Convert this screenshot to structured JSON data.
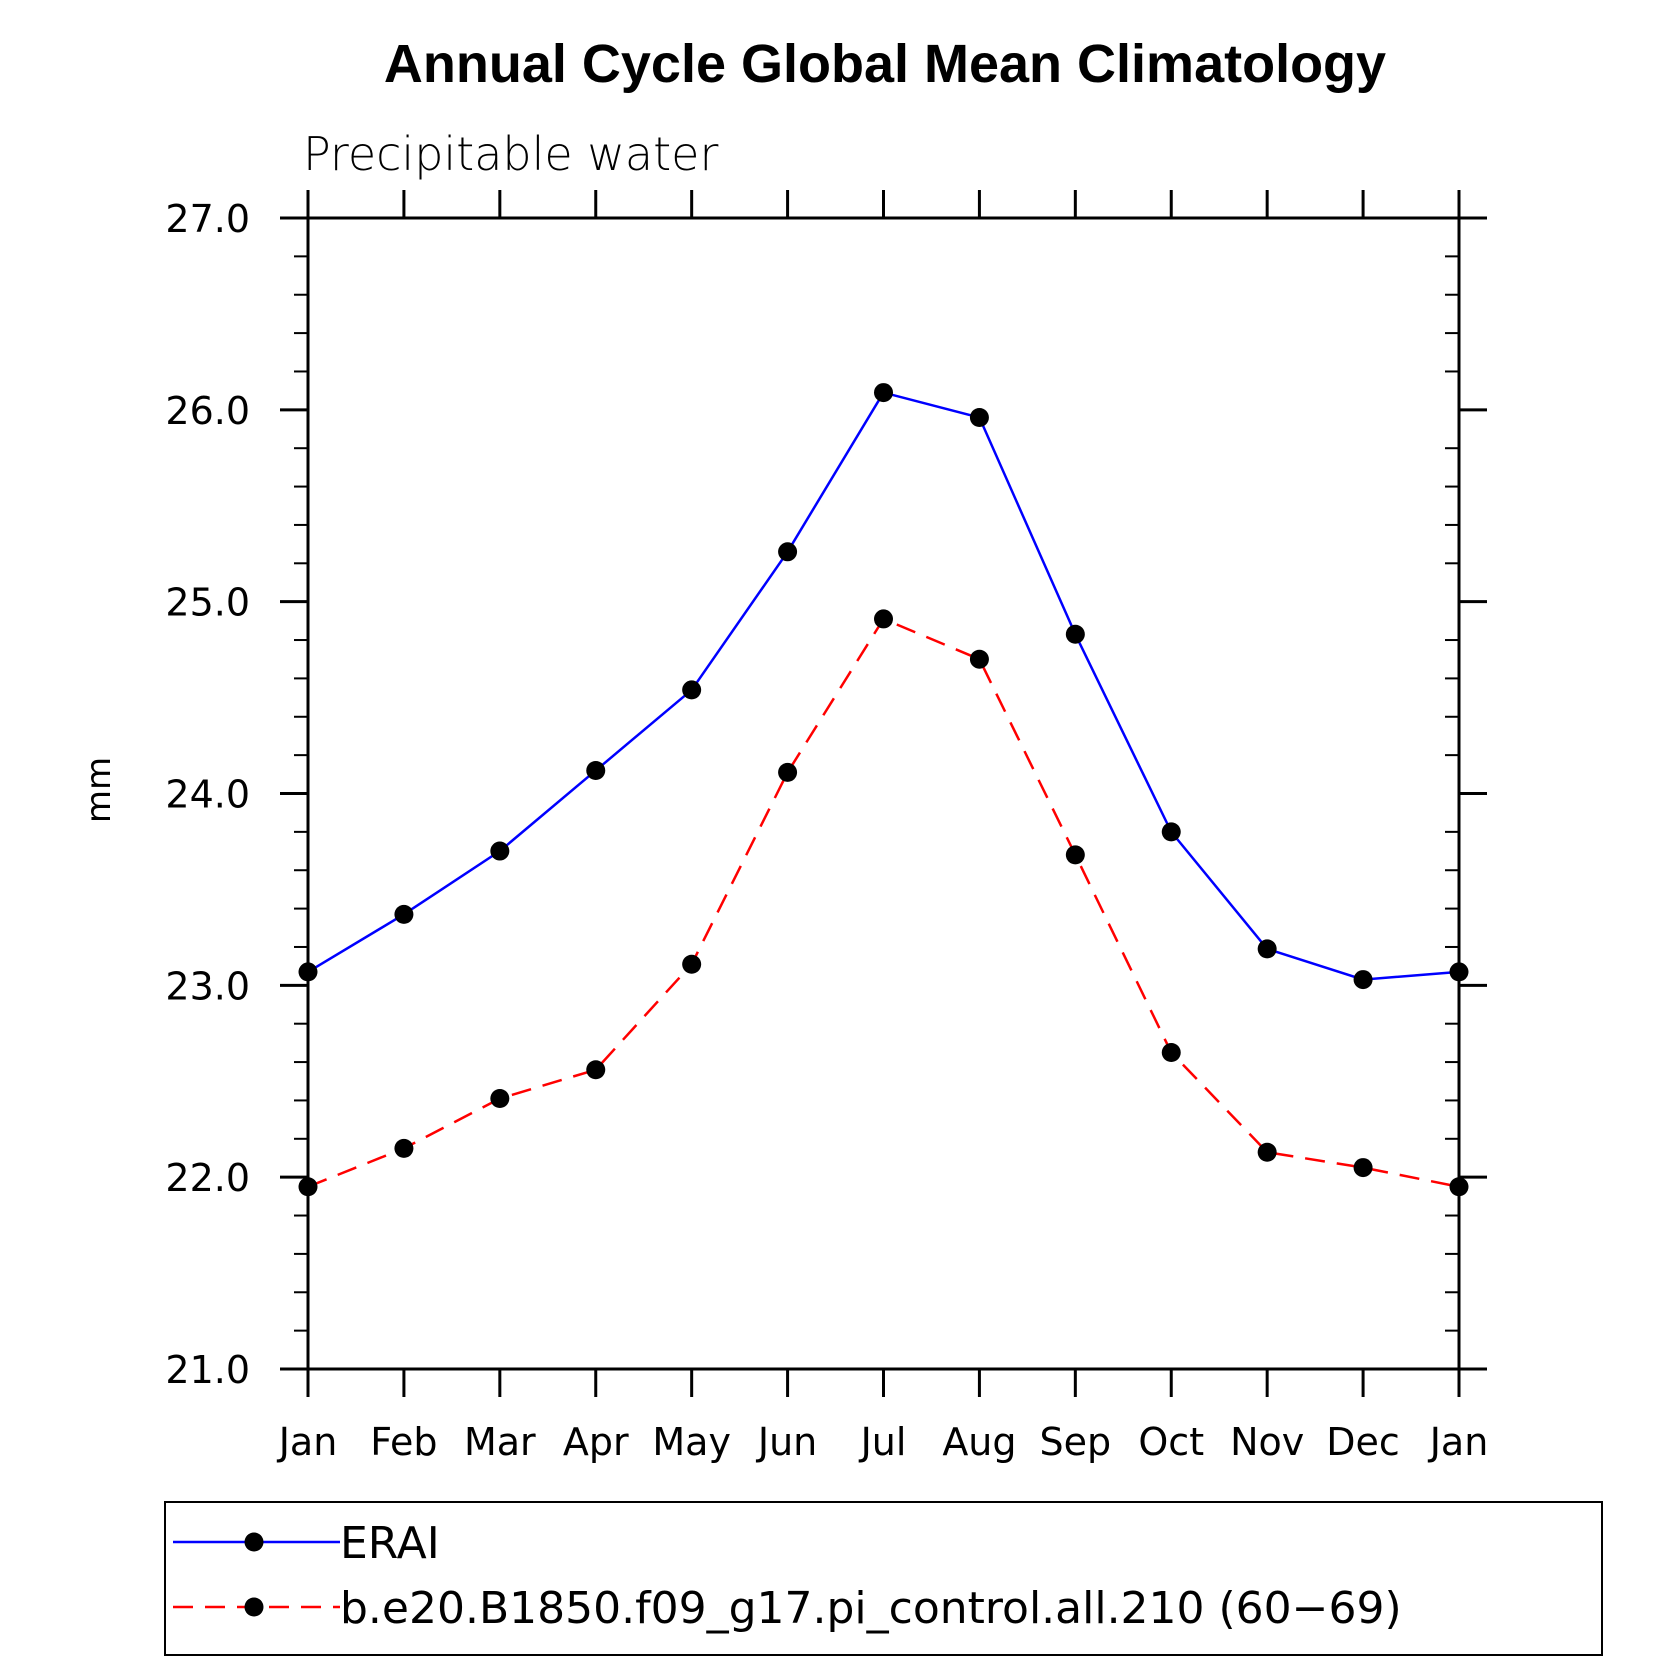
{
  "chart_data": {
    "type": "line",
    "title": "Annual Cycle Global Mean Climatology",
    "subtitle": "Precipitable water",
    "xlabel": "",
    "ylabel": "mm",
    "categories": [
      "Jan",
      "Feb",
      "Mar",
      "Apr",
      "May",
      "Jun",
      "Jul",
      "Aug",
      "Sep",
      "Oct",
      "Nov",
      "Dec",
      "Jan"
    ],
    "ylim": [
      21.0,
      27.0
    ],
    "yticks": [
      "21.0",
      "22.0",
      "23.0",
      "24.0",
      "25.0",
      "26.0",
      "27.0"
    ],
    "grid": false,
    "legend_position": "bottom",
    "series": [
      {
        "name": "ERAI",
        "color": "#0000ff",
        "dash": "solid",
        "marker": "circle",
        "values": [
          23.07,
          23.37,
          23.7,
          24.12,
          24.54,
          25.26,
          26.09,
          25.96,
          24.83,
          23.8,
          23.19,
          23.03,
          23.07
        ]
      },
      {
        "name": "b.e20.B1850.f09_g17.pi_control.all.210 (60−69)",
        "color": "#ff0000",
        "dash": "dashed",
        "marker": "circle",
        "values": [
          21.95,
          22.15,
          22.41,
          22.56,
          23.11,
          24.11,
          24.91,
          24.7,
          23.68,
          22.65,
          22.13,
          22.05,
          21.95
        ]
      }
    ]
  }
}
